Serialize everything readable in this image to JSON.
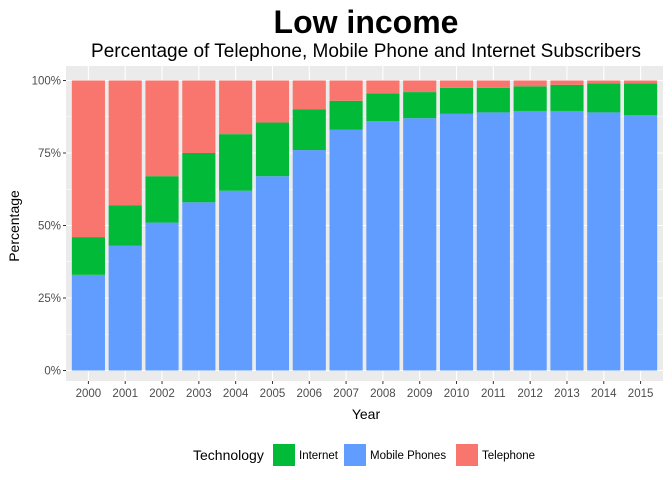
{
  "chart_data": {
    "type": "bar",
    "stacked": true,
    "title": "Low income",
    "subtitle": "Percentage of Telephone, Mobile Phone and Internet Subscribers",
    "xlabel": "Year",
    "ylabel": "Percentage",
    "ylim": [
      0,
      1
    ],
    "yticks": [
      0,
      0.25,
      0.5,
      0.75,
      1.0
    ],
    "ytick_labels": [
      "0%",
      "25%",
      "50%",
      "75%",
      "100%"
    ],
    "categories": [
      "2000",
      "2001",
      "2002",
      "2003",
      "2004",
      "2005",
      "2006",
      "2007",
      "2008",
      "2009",
      "2010",
      "2011",
      "2012",
      "2013",
      "2014",
      "2015"
    ],
    "series": [
      {
        "name": "Mobile Phones",
        "color": "#619CFF",
        "values": [
          0.33,
          0.43,
          0.51,
          0.58,
          0.62,
          0.67,
          0.76,
          0.83,
          0.86,
          0.87,
          0.885,
          0.89,
          0.895,
          0.895,
          0.89,
          0.88
        ]
      },
      {
        "name": "Internet",
        "color": "#00BA38",
        "values": [
          0.13,
          0.14,
          0.16,
          0.17,
          0.195,
          0.185,
          0.14,
          0.1,
          0.095,
          0.09,
          0.09,
          0.085,
          0.085,
          0.09,
          0.1,
          0.11
        ]
      },
      {
        "name": "Telephone",
        "color": "#F8766D",
        "values": [
          0.54,
          0.43,
          0.33,
          0.25,
          0.185,
          0.145,
          0.1,
          0.07,
          0.045,
          0.04,
          0.025,
          0.025,
          0.02,
          0.015,
          0.01,
          0.01
        ]
      }
    ],
    "legend": {
      "title": "Technology",
      "position": "bottom",
      "order": [
        "Internet",
        "Mobile Phones",
        "Telephone"
      ]
    },
    "grid": true,
    "panel_background": "#EBEBEB"
  }
}
